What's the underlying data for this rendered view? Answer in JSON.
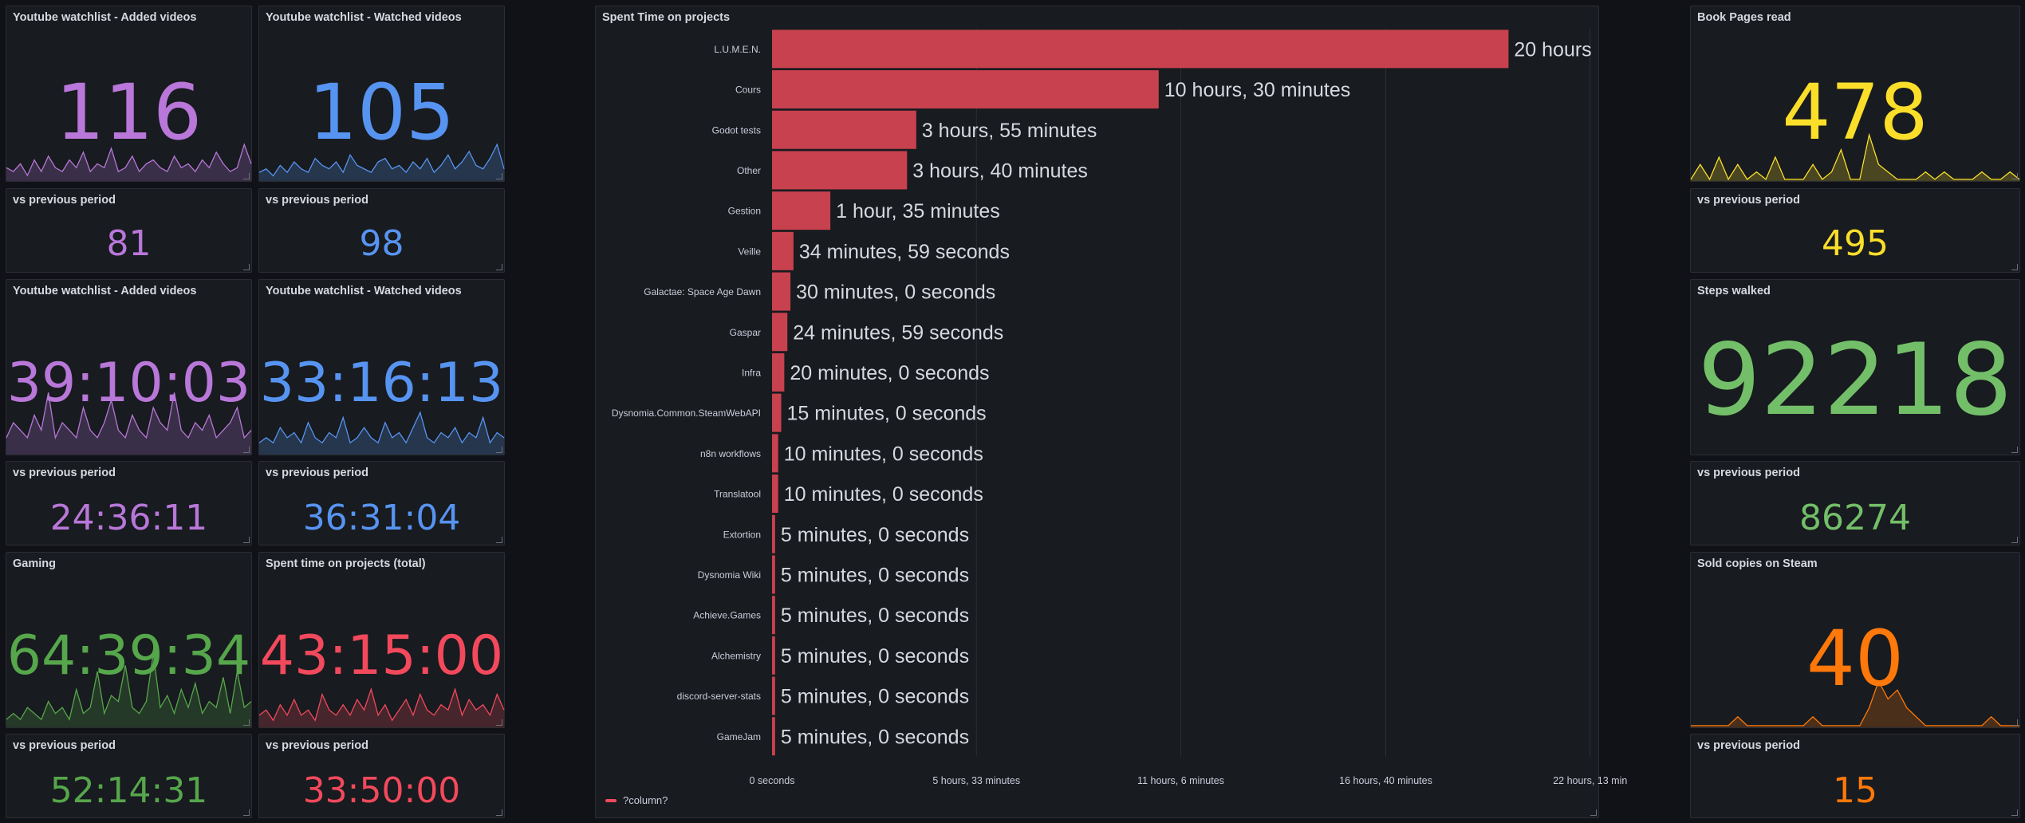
{
  "colors": {
    "purple": "#b877d9",
    "blue": "#5794f2",
    "green": "#56a64b",
    "red": "#f2495c",
    "yellow": "#fade2a",
    "lightgreen": "#73bf69",
    "orange": "#ff780a",
    "bar": "#c8414f"
  },
  "stats": {
    "yt_added": {
      "title": "Youtube watchlist - Added videos",
      "value": "116",
      "prev_title": "vs previous period",
      "prev_value": "81"
    },
    "yt_watched": {
      "title": "Youtube watchlist - Watched videos",
      "value": "105",
      "prev_title": "vs previous period",
      "prev_value": "98"
    },
    "yt_added_time": {
      "title": "Youtube watchlist - Added videos",
      "value": "39:10:03",
      "prev_title": "vs previous period",
      "prev_value": "24:36:11"
    },
    "yt_watched_time": {
      "title": "Youtube watchlist - Watched videos",
      "value": "33:16:13",
      "prev_title": "vs previous period",
      "prev_value": "36:31:04"
    },
    "gaming": {
      "title": "Gaming",
      "value": "64:39:34",
      "prev_title": "vs previous period",
      "prev_value": "52:14:31"
    },
    "projects_total": {
      "title": "Spent time on projects (total)",
      "value": "43:15:00",
      "prev_title": "vs previous period",
      "prev_value": "33:50:00"
    },
    "book_pages": {
      "title": "Book Pages read",
      "value": "478",
      "prev_title": "vs previous period",
      "prev_value": "495"
    },
    "steps": {
      "title": "Steps walked",
      "value": "92218",
      "prev_title": "vs previous period",
      "prev_value": "86274"
    },
    "steam": {
      "title": "Sold copies on Steam",
      "value": "40",
      "prev_title": "vs previous period",
      "prev_value": "15"
    }
  },
  "sparklines": {
    "yt_added": [
      3,
      2,
      4,
      1,
      5,
      2,
      6,
      3,
      2,
      5,
      3,
      7,
      2,
      4,
      3,
      8,
      2,
      3,
      6,
      2,
      4,
      5,
      3,
      2,
      6,
      3,
      4,
      2,
      5,
      3,
      7,
      4,
      2,
      3,
      9,
      4
    ],
    "yt_watched": [
      2,
      3,
      1,
      4,
      2,
      5,
      3,
      2,
      6,
      4,
      3,
      5,
      2,
      7,
      4,
      3,
      2,
      5,
      6,
      3,
      4,
      2,
      5,
      3,
      6,
      2,
      4,
      7,
      3,
      5,
      8,
      4,
      3,
      6,
      10,
      3
    ],
    "yt_added_time": [
      2,
      4,
      3,
      2,
      5,
      3,
      8,
      2,
      4,
      3,
      2,
      6,
      3,
      2,
      4,
      7,
      3,
      2,
      5,
      3,
      2,
      6,
      4,
      3,
      8,
      3,
      2,
      4,
      3,
      5,
      2,
      3,
      4,
      6,
      2,
      3
    ],
    "yt_watched_time": [
      2,
      3,
      2,
      5,
      3,
      4,
      2,
      6,
      3,
      2,
      4,
      3,
      7,
      2,
      3,
      5,
      3,
      2,
      6,
      3,
      4,
      2,
      5,
      8,
      3,
      2,
      4,
      3,
      5,
      2,
      4,
      3,
      7,
      2,
      4,
      3
    ],
    "gaming": [
      1,
      2,
      1,
      3,
      2,
      1,
      4,
      2,
      3,
      1,
      6,
      2,
      3,
      9,
      2,
      5,
      4,
      10,
      3,
      2,
      4,
      12,
      3,
      5,
      2,
      6,
      3,
      7,
      2,
      4,
      3,
      8,
      2,
      9,
      3,
      4
    ],
    "projects_total": [
      2,
      3,
      1,
      4,
      2,
      5,
      2,
      3,
      1,
      6,
      3,
      2,
      4,
      2,
      5,
      3,
      7,
      2,
      4,
      1,
      3,
      5,
      2,
      6,
      3,
      2,
      4,
      3,
      7,
      2,
      5,
      3,
      4,
      2,
      6,
      3
    ],
    "book_pages": [
      0,
      2,
      0,
      3,
      0,
      2,
      0,
      1,
      0,
      3,
      0,
      0,
      0,
      2,
      0,
      1,
      4,
      0,
      0,
      6,
      2,
      1,
      0,
      0,
      0,
      1,
      0,
      1,
      0,
      0,
      0,
      1,
      0,
      0,
      1,
      0
    ],
    "steam": [
      0,
      0,
      0,
      0,
      0,
      1,
      0,
      0,
      0,
      0,
      0,
      0,
      0,
      1,
      0,
      0,
      0,
      0,
      0,
      2,
      5,
      3,
      4,
      2,
      1,
      0,
      0,
      0,
      0,
      0,
      0,
      0,
      1,
      0,
      0,
      0
    ]
  },
  "bar_panel": {
    "title": "Spent Time on projects",
    "legend_label": "?column?"
  },
  "chart_data": {
    "type": "bar",
    "orientation": "horizontal",
    "title": "Spent Time on projects",
    "categories": [
      "L.U.M.E.N.",
      "Cours",
      "Godot tests",
      "Other",
      "Gestion",
      "Veille",
      "Galactae: Space Age Dawn",
      "Gaspar",
      "Infra",
      "Dysnomia.Common.SteamWebAPI",
      "n8n workflows",
      "Translatool",
      "Extortion",
      "Dysnomia Wiki",
      "Achieve.Games",
      "Alchemistry",
      "discord-server-stats",
      "GameJam"
    ],
    "values": [
      72000,
      37800,
      14100,
      13200,
      5700,
      2099,
      1800,
      1499,
      1200,
      900,
      600,
      600,
      300,
      300,
      300,
      300,
      300,
      300
    ],
    "value_labels": [
      "20 hours",
      "10 hours, 30 minutes",
      "3 hours, 55 minutes",
      "3 hours, 40 minutes",
      "1 hour, 35 minutes",
      "34 minutes, 59 seconds",
      "30 minutes, 0 seconds",
      "24 minutes, 59 seconds",
      "20 minutes, 0 seconds",
      "15 minutes, 0 seconds",
      "10 minutes, 0 seconds",
      "10 minutes, 0 seconds",
      "5 minutes, 0 seconds",
      "5 minutes, 0 seconds",
      "5 minutes, 0 seconds",
      "5 minutes, 0 seconds",
      "5 minutes, 0 seconds",
      "5 minutes, 0 seconds"
    ],
    "value_unit": "seconds",
    "xlim": [
      0,
      80000
    ],
    "x_ticks": [
      0,
      19980,
      39960,
      60000,
      79980
    ],
    "x_tick_labels": [
      "0 seconds",
      "5 hours, 33 minutes",
      "11 hours, 6 minutes",
      "16 hours, 40 minutes",
      "22 hours, 13 min"
    ],
    "series": [
      {
        "name": "?column?",
        "values": [
          72000,
          37800,
          14100,
          13200,
          5700,
          2099,
          1800,
          1499,
          1200,
          900,
          600,
          600,
          300,
          300,
          300,
          300,
          300,
          300
        ]
      }
    ],
    "legend": "bottom-left",
    "grid": true
  }
}
